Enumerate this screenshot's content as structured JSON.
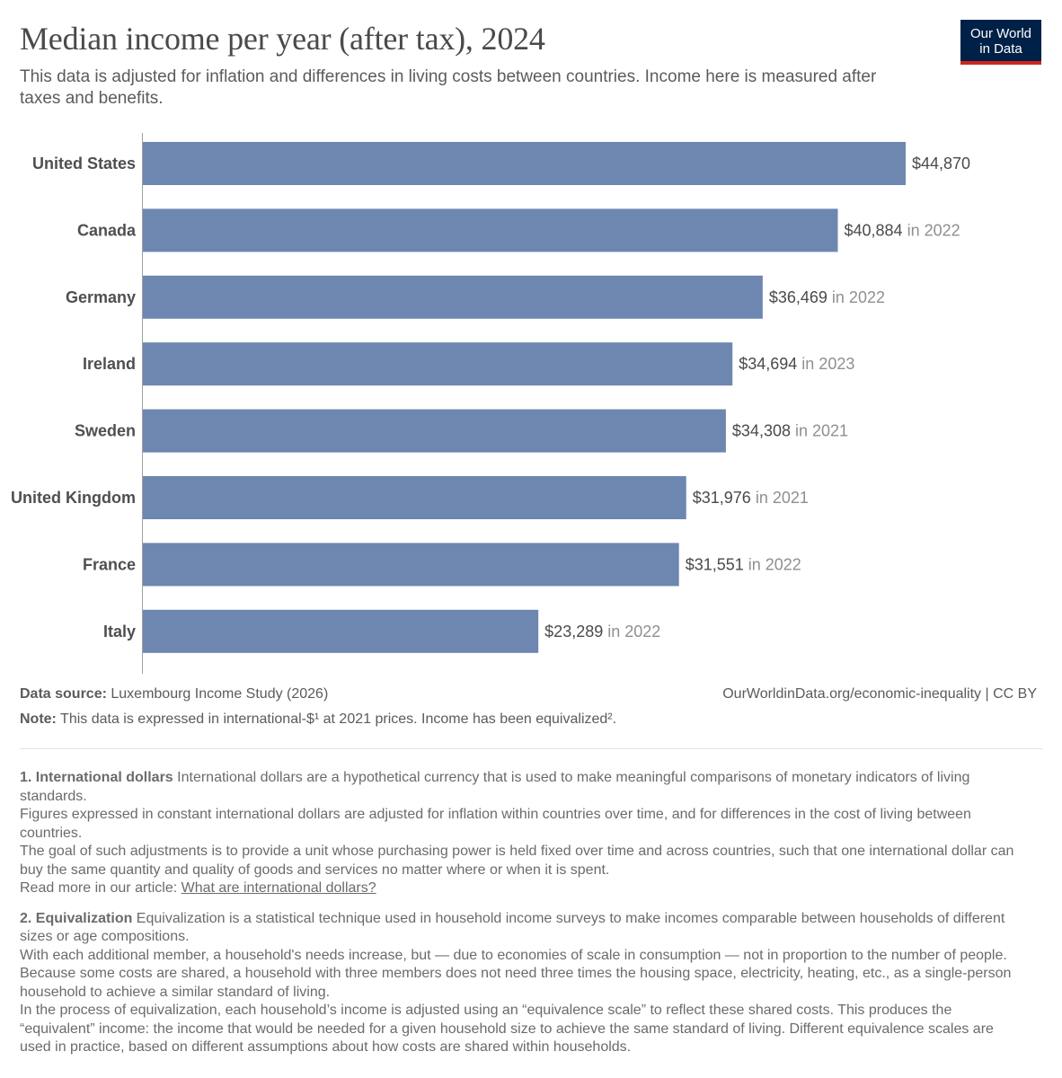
{
  "header": {
    "title": "Median income per year (after tax), 2024",
    "subtitle": "This data is adjusted for inflation and differences in living costs between countries. Income here is measured after taxes and benefits.",
    "logo_line1": "Our World",
    "logo_line2": "in Data"
  },
  "colors": {
    "bar": "#6e87b0",
    "axis": "#a0a0a0",
    "logo_bg": "#002147",
    "logo_accent": "#ce261e"
  },
  "chart_data": {
    "type": "bar",
    "orientation": "horizontal",
    "title": "Median income per year (after tax), 2024",
    "xlabel": "",
    "ylabel": "",
    "xlim": [
      0,
      44870
    ],
    "categories": [
      "United States",
      "Canada",
      "Germany",
      "Ireland",
      "Sweden",
      "United Kingdom",
      "France",
      "Italy"
    ],
    "values": [
      44870,
      40884,
      36469,
      34694,
      34308,
      31976,
      31551,
      23289
    ],
    "value_labels": [
      "$44,870",
      "$40,884",
      "$36,469",
      "$34,694",
      "$34,308",
      "$31,976",
      "$31,551",
      "$23,289"
    ],
    "year_labels": [
      "",
      "in 2022",
      "in 2022",
      "in 2023",
      "in 2021",
      "in 2021",
      "in 2022",
      "in 2022"
    ]
  },
  "footer": {
    "source_label": "Data source:",
    "source_text": " Luxembourg Income Study (2026)",
    "url": "OurWorldinData.org/economic-inequality | CC BY",
    "note_label": "Note:",
    "note_text": " This data is expressed in international-$¹ at 2021 prices. Income has been equivalized²."
  },
  "footnotes": {
    "fn1_title": "1. International dollars",
    "fn1_p1": " International dollars are a hypothetical currency that is used to make meaningful comparisons of monetary indicators of living standards.",
    "fn1_p2": "Figures expressed in constant international dollars are adjusted for inflation within countries over time, and for differences in the cost of living between countries.",
    "fn1_p3": "The goal of such adjustments is to provide a unit whose purchasing power is held fixed over time and across countries, such that one international dollar can buy the same quantity and quality of goods and services no matter where or when it is spent.",
    "fn1_read_more": "Read more in our article: ",
    "fn1_link": "What are international dollars?",
    "fn2_title": "2. Equivalization",
    "fn2_p1": " Equivalization is a statistical technique used in household income surveys to make incomes comparable between households of different sizes or age compositions.",
    "fn2_p2": "With each additional member, a household's needs increase, but — due to economies of scale in consumption — not in proportion to the number of people. Because some costs are shared, a household with three members does not need three times the housing space, electricity, heating, etc., as a single-person household to achieve a similar standard of living.",
    "fn2_p3": "In the process of equivalization, each household’s income is adjusted using an “equivalence scale” to reflect these shared costs. This produces the “equivalent” income: the income that would be needed for a given household size to achieve the same standard of living. Different equivalence scales are used in practice, based on different assumptions about how costs are shared within households."
  }
}
